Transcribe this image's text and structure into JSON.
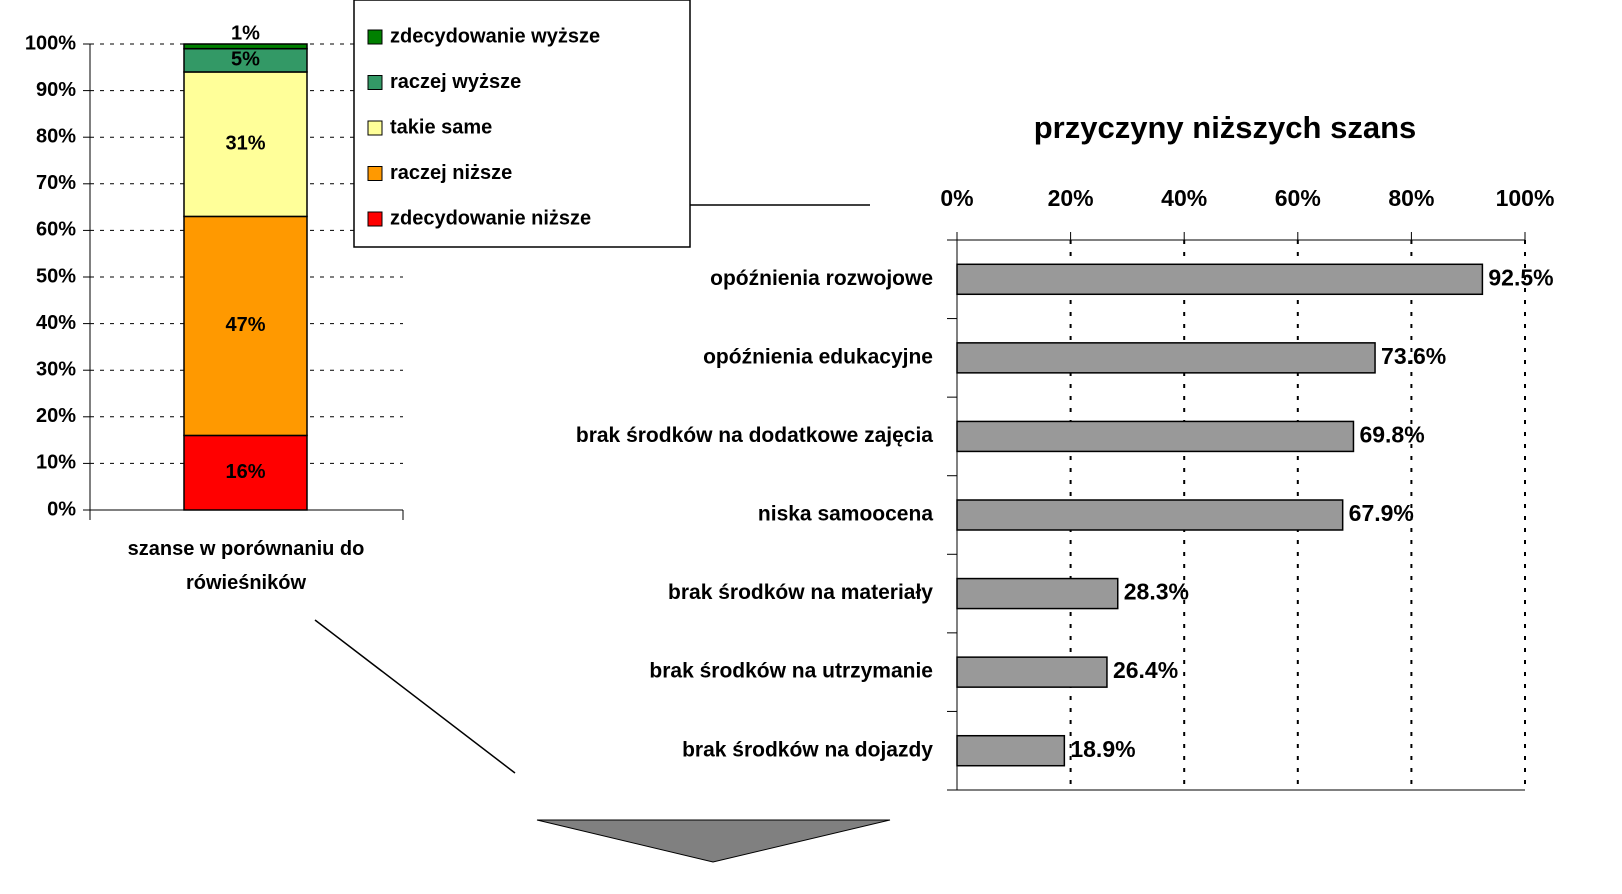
{
  "chart_data": [
    {
      "type": "bar",
      "stacked": true,
      "categories": [
        "szanse w porównaniu do rówieśników"
      ],
      "series": [
        {
          "name": "zdecydowanie niższe",
          "color": "#ff0000",
          "values": [
            16
          ],
          "value_labels": [
            "16%"
          ]
        },
        {
          "name": "raczej niższe",
          "color": "#ff9900",
          "values": [
            47
          ],
          "value_labels": [
            "47%"
          ]
        },
        {
          "name": "takie same",
          "color": "#ffff99",
          "values": [
            31
          ],
          "value_labels": [
            "31%"
          ]
        },
        {
          "name": "raczej wyższe",
          "color": "#339966",
          "values": [
            5
          ],
          "value_labels": [
            "5%"
          ]
        },
        {
          "name": "zdecydowanie wyższe",
          "color": "#008000",
          "values": [
            1
          ],
          "value_labels": [
            "1%"
          ]
        }
      ],
      "ylim": [
        0,
        100
      ],
      "yticks": [
        {
          "value": 0,
          "label": "0%"
        },
        {
          "value": 10,
          "label": "10%"
        },
        {
          "value": 20,
          "label": "20%"
        },
        {
          "value": 30,
          "label": "30%"
        },
        {
          "value": 40,
          "label": "40%"
        },
        {
          "value": 50,
          "label": "50%"
        },
        {
          "value": 60,
          "label": "60%"
        },
        {
          "value": 70,
          "label": "70%"
        },
        {
          "value": 80,
          "label": "80%"
        },
        {
          "value": 90,
          "label": "90%"
        },
        {
          "value": 100,
          "label": "100%"
        }
      ],
      "grid": true,
      "legend": "upper right"
    },
    {
      "type": "barh",
      "title": "przyczyny niższych szans",
      "categories": [
        "opóźnienia rozwojowe",
        "opóźnienia edukacyjne",
        "brak środków na dodatkowe zajęcia",
        "niska samoocena",
        "brak środków na materiały",
        "brak środków na utrzymanie",
        "brak środków na dojazdy"
      ],
      "values": [
        92.5,
        73.6,
        69.8,
        67.9,
        28.3,
        26.4,
        18.9
      ],
      "value_labels": [
        "92.5%",
        "73.6%",
        "69.8%",
        "67.9%",
        "28.3%",
        "26.4%",
        "18.9%"
      ],
      "color": "#999999",
      "xlim": [
        0,
        100
      ],
      "xticks": [
        {
          "value": 0,
          "label": "0%"
        },
        {
          "value": 20,
          "label": "20%"
        },
        {
          "value": 40,
          "label": "40%"
        },
        {
          "value": 60,
          "label": "60%"
        },
        {
          "value": 80,
          "label": "80%"
        },
        {
          "value": 100,
          "label": "100%"
        }
      ],
      "grid": true
    }
  ]
}
